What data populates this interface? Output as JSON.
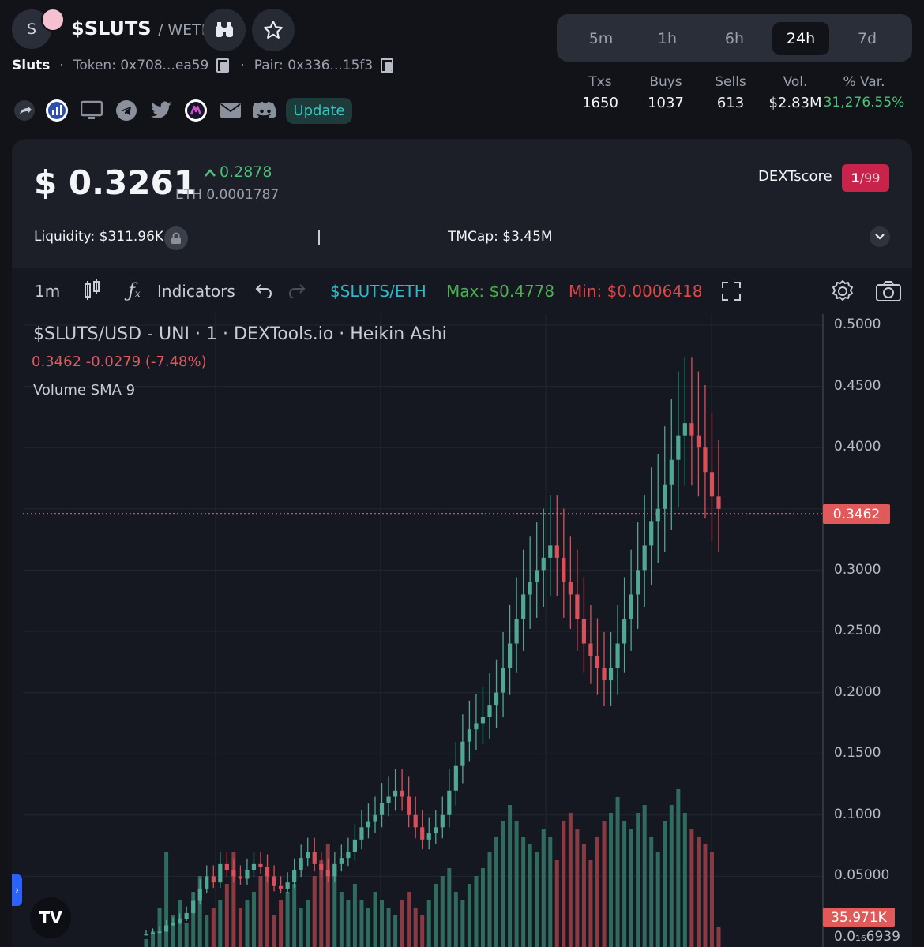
{
  "header": {
    "avatar_letter": "S",
    "symbol": "$SLUTS",
    "quote": "/ WETH",
    "name": "Sluts",
    "token": "Token: 0x708...ea59",
    "pair": "Pair: 0x336...15f3",
    "update_label": "Update"
  },
  "timeframes": [
    {
      "label": "5m",
      "active": false
    },
    {
      "label": "1h",
      "active": false
    },
    {
      "label": "6h",
      "active": false
    },
    {
      "label": "24h",
      "active": true
    },
    {
      "label": "7d",
      "active": false
    }
  ],
  "stats": [
    {
      "label": "Txs",
      "value": "1650"
    },
    {
      "label": "Buys",
      "value": "1037"
    },
    {
      "label": "Sells",
      "value": "613"
    },
    {
      "label": "Vol.",
      "value": "$2.83M"
    },
    {
      "label": "% Var.",
      "value": "31,276.55%"
    }
  ],
  "price_card": {
    "price": "$ 0.3261",
    "change": "0.2878",
    "eth_price": "ETH 0.0001787",
    "dextscore_label": "DEXTscore",
    "dextscore_value": "1",
    "dextscore_total": "/99",
    "liquidity_label": "Liquidity:",
    "liquidity_value": "$311.96K",
    "tmcap_label": "TMCap:",
    "tmcap_value": "$3.45M"
  },
  "toolbar": {
    "interval": "1m",
    "indicators": "Indicators",
    "pair": "$SLUTS/ETH",
    "max": "Max: $0.4778",
    "min": "Min: $0.0006418"
  },
  "chart_legend": {
    "title": "$SLUTS/USD - UNI · 1 · DEXTools.io · Heikin Ashi",
    "ohlc": "0.3462  -0.0279 (-7.48%)",
    "volume": "Volume SMA 9",
    "last_price_tag": "0.3462",
    "volume_tag": "35.971K",
    "bottom_tick": "0.0₁₆6939",
    "logo_text": "TV"
  },
  "colors": {
    "up": "#4fa893",
    "down": "#d9505a",
    "accent": "#2fb9c6",
    "max": "#4caf50",
    "min": "#e04646"
  },
  "icons": [
    "binoculars-icon",
    "star-icon",
    "share-icon",
    "chart-icon",
    "desktop-icon",
    "telegram-icon",
    "twitter-icon",
    "coinmarketcap-icon",
    "mail-icon",
    "discord-icon",
    "lock-icon",
    "chevron-down-icon",
    "candle-icon",
    "fx-icon",
    "undo-icon",
    "redo-icon",
    "fullscreen-icon",
    "settings-icon",
    "camera-icon"
  ],
  "chart_data": {
    "type": "candlestick",
    "price_ticks": [
      "0.5000",
      "0.4500",
      "0.4000",
      "0.3462",
      "0.3000",
      "0.2500",
      "0.2000",
      "0.1500",
      "0.1000",
      "0.05000",
      "0.0₁₆6939"
    ],
    "ylim": [
      0,
      0.5
    ],
    "last_price": 0.3462,
    "close_series": [
      0.003,
      0.004,
      0.005,
      0.01,
      0.012,
      0.015,
      0.02,
      0.03,
      0.04,
      0.05,
      0.045,
      0.06,
      0.055,
      0.05,
      0.048,
      0.055,
      0.06,
      0.058,
      0.05,
      0.042,
      0.04,
      0.045,
      0.055,
      0.065,
      0.07,
      0.06,
      0.055,
      0.05,
      0.06,
      0.065,
      0.07,
      0.08,
      0.09,
      0.095,
      0.1,
      0.11,
      0.115,
      0.12,
      0.115,
      0.1,
      0.09,
      0.08,
      0.085,
      0.09,
      0.1,
      0.12,
      0.14,
      0.16,
      0.17,
      0.175,
      0.18,
      0.19,
      0.2,
      0.22,
      0.24,
      0.26,
      0.28,
      0.29,
      0.3,
      0.31,
      0.32,
      0.31,
      0.29,
      0.28,
      0.26,
      0.24,
      0.23,
      0.22,
      0.21,
      0.22,
      0.24,
      0.26,
      0.28,
      0.3,
      0.32,
      0.34,
      0.35,
      0.37,
      0.39,
      0.41,
      0.42,
      0.41,
      0.4,
      0.38,
      0.36,
      0.35
    ],
    "volume_series": [
      10,
      20,
      50,
      120,
      40,
      60,
      30,
      70,
      90,
      40,
      50,
      60,
      80,
      120,
      50,
      60,
      70,
      90,
      100,
      40,
      60,
      70,
      80,
      50,
      60,
      90,
      110,
      130,
      100,
      70,
      60,
      80,
      60,
      50,
      70,
      60,
      50,
      40,
      60,
      70,
      50,
      40,
      60,
      80,
      90,
      100,
      70,
      60,
      80,
      90,
      100,
      120,
      140,
      160,
      180,
      160,
      140,
      130,
      120,
      150,
      140,
      110,
      160,
      170,
      150,
      130,
      110,
      140,
      160,
      170,
      190,
      160,
      150,
      170,
      180,
      140,
      120,
      160,
      180,
      200,
      170,
      150,
      140,
      130,
      120,
      25
    ]
  }
}
